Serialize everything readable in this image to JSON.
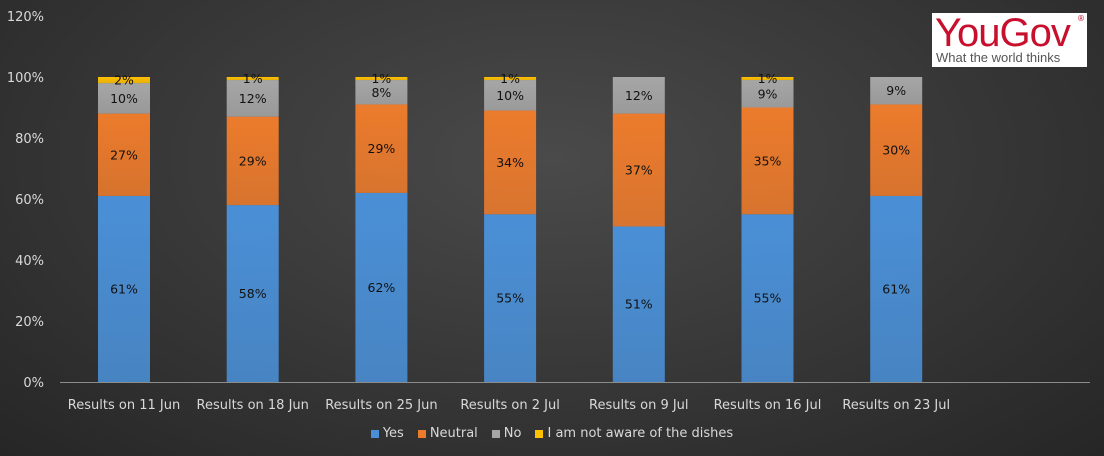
{
  "logo": {
    "brand": "YouGov",
    "registered": "®",
    "tagline": "What the world thinks"
  },
  "colors": {
    "yes": "#4a8fd6",
    "neutral": "#ec7b2c",
    "no": "#a6a6a6",
    "unaware": "#ffc000"
  },
  "chart_data": {
    "type": "bar",
    "stacked": true,
    "categories": [
      "Results on 11 Jun",
      "Results on 18 Jun",
      "Results on 25 Jun",
      "Results on 2 Jul",
      "Results on 9 Jul",
      "Results on 16 Jul",
      "Results on 23 Jul"
    ],
    "series": [
      {
        "name": "Yes",
        "values": [
          61,
          58,
          62,
          55,
          51,
          55,
          61
        ]
      },
      {
        "name": "Neutral",
        "values": [
          27,
          29,
          29,
          34,
          37,
          35,
          30
        ]
      },
      {
        "name": "No",
        "values": [
          10,
          12,
          8,
          10,
          12,
          9,
          9
        ]
      },
      {
        "name": "I am not aware of the dishes",
        "values": [
          2,
          1,
          1,
          1,
          0,
          1,
          0
        ]
      }
    ],
    "ylim": [
      0,
      120
    ],
    "yticks": [
      "0%",
      "20%",
      "40%",
      "60%",
      "80%",
      "100%",
      "120%"
    ],
    "legend_position": "bottom",
    "grid": false
  }
}
